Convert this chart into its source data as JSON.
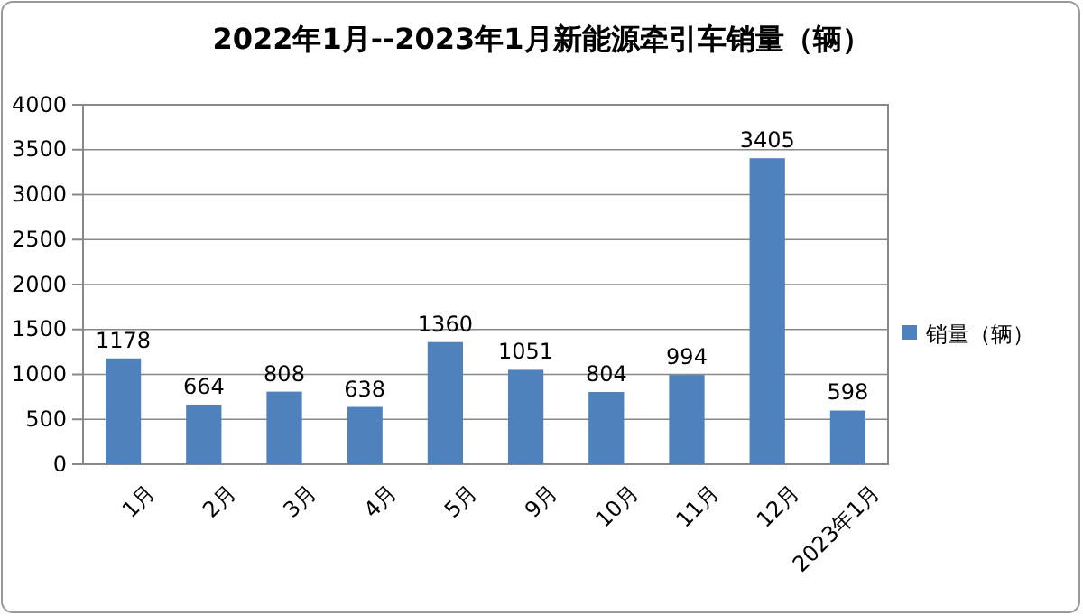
{
  "chart_data": {
    "type": "bar",
    "title": "2022年1月--2023年1月新能源牵引车销量（辆）",
    "categories": [
      "1月",
      "2月",
      "3月",
      "4月",
      "5月",
      "9月",
      "10月",
      "11月",
      "12月",
      "2023年1月"
    ],
    "series": [
      {
        "name": "销量（辆）",
        "color": "#4f81bd",
        "values": [
          1178,
          664,
          808,
          638,
          1360,
          1051,
          804,
          994,
          3405,
          598
        ]
      }
    ],
    "ylim": [
      0,
      4000
    ],
    "yticks": [
      0,
      500,
      1000,
      1500,
      2000,
      2500,
      3000,
      3500,
      4000
    ],
    "grid": "y",
    "data_labels": true,
    "legend": "right"
  }
}
